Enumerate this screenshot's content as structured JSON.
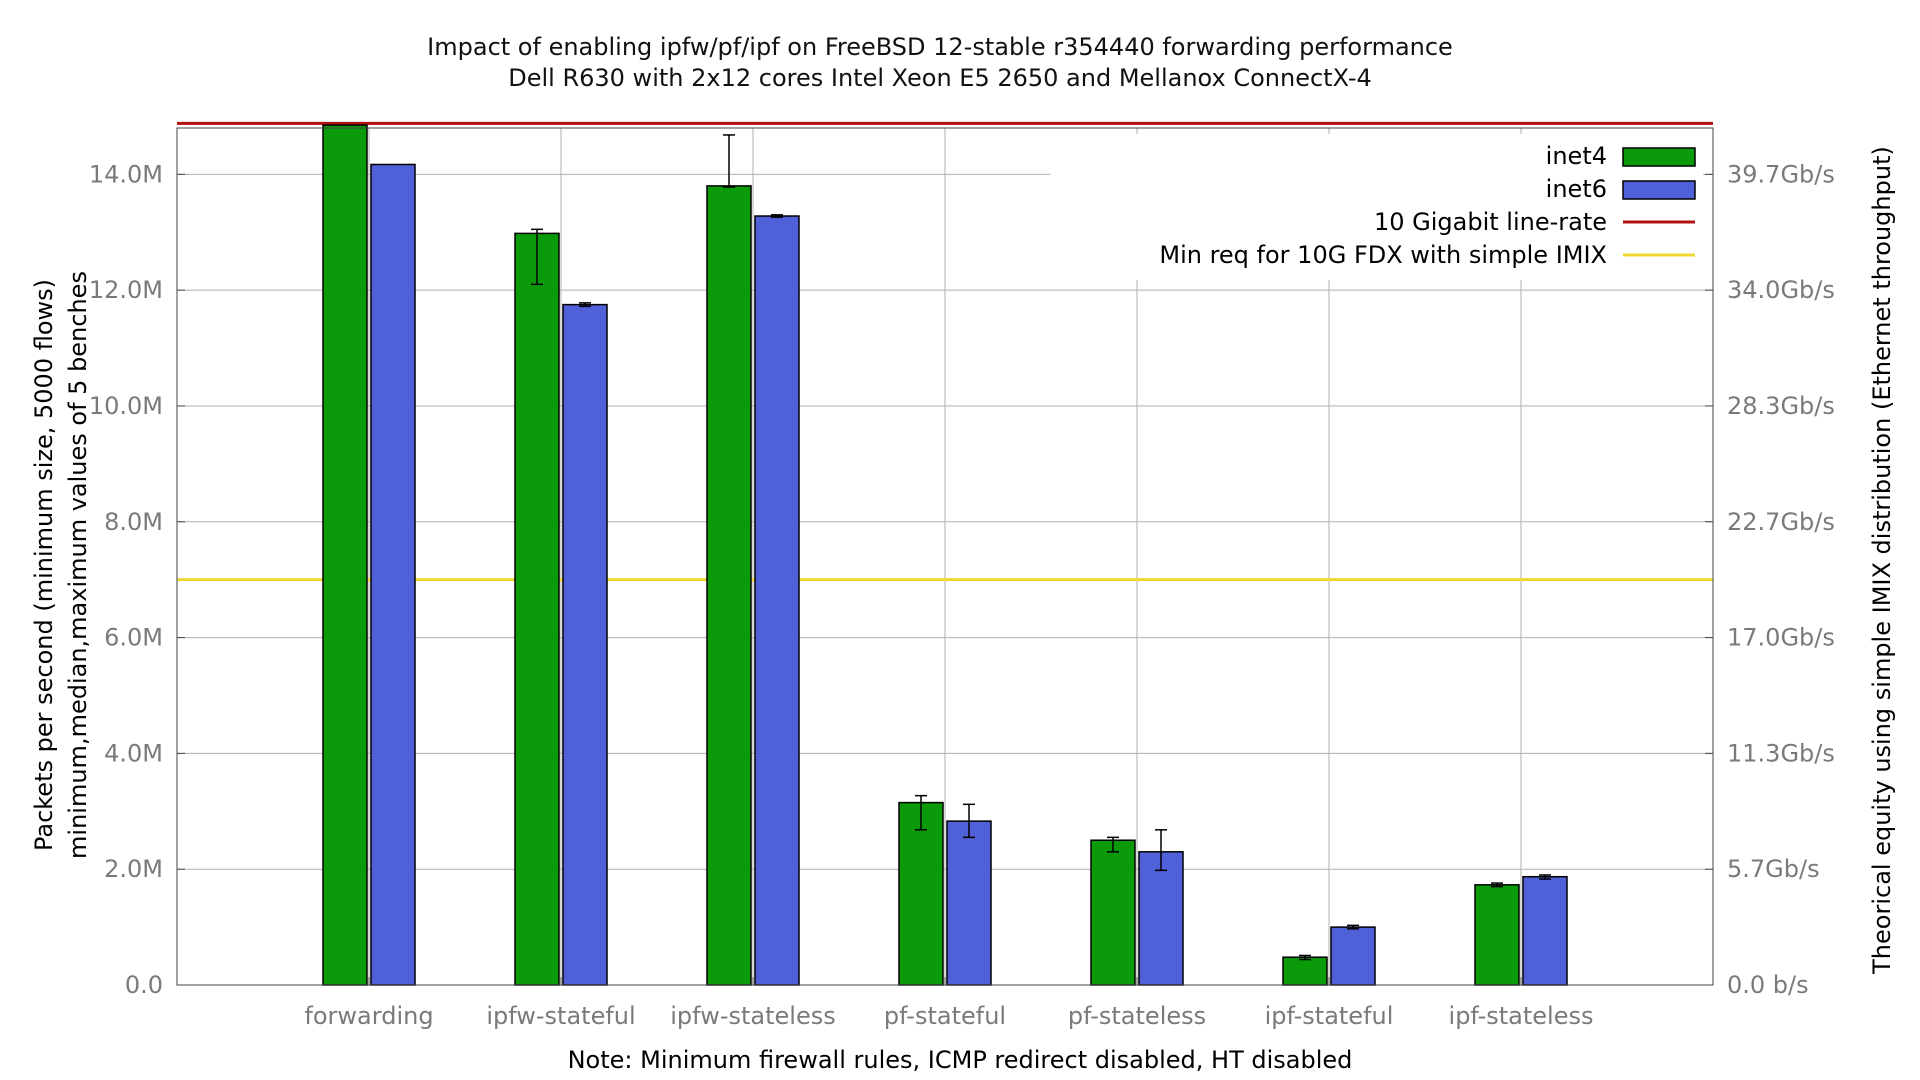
{
  "chart_data": {
    "type": "bar",
    "title": "Impact of enabling ipfw/pf/ipf on FreeBSD 12-stable r354440 forwarding performance",
    "subtitle": "Dell R630 with 2x12 cores Intel Xeon E5 2650 and Mellanox ConnectX-4",
    "ylabel": "Packets per second (minimum size, 5000 flows)",
    "ylabel2": "minimum,median,maximum values of 5 benches",
    "y2label": "Theorical equity using simple IMIX distribution (Ethernet throughput)",
    "note": "Note: Minimum firewall rules, ICMP redirect disabled, HT disabled",
    "categories": [
      "forwarding",
      "ipfw-stateful",
      "ipfw-stateless",
      "pf-stateful",
      "pf-stateless",
      "ipf-stateful",
      "ipf-stateless"
    ],
    "ylim": [
      0,
      14.8
    ],
    "yticks": [
      {
        "value": 0,
        "label": "0.0"
      },
      {
        "value": 2,
        "label": "2.0M"
      },
      {
        "value": 4,
        "label": "4.0M"
      },
      {
        "value": 6,
        "label": "6.0M"
      },
      {
        "value": 8,
        "label": "8.0M"
      },
      {
        "value": 10,
        "label": "10.0M"
      },
      {
        "value": 12,
        "label": "12.0M"
      },
      {
        "value": 14,
        "label": "14.0M"
      }
    ],
    "y2ticks": [
      {
        "value": 0,
        "label": "0.0 b/s"
      },
      {
        "value": 2,
        "label": "5.7Gb/s"
      },
      {
        "value": 4,
        "label": "11.3Gb/s"
      },
      {
        "value": 6,
        "label": "17.0Gb/s"
      },
      {
        "value": 8,
        "label": "22.7Gb/s"
      },
      {
        "value": 10,
        "label": "28.3Gb/s"
      },
      {
        "value": 12,
        "label": "34.0Gb/s"
      },
      {
        "value": 14,
        "label": "39.7Gb/s"
      }
    ],
    "grid": true,
    "legend_position": "top-right",
    "series": [
      {
        "name": "inet4",
        "color": "#0a9a0a",
        "values": [
          14.85,
          12.98,
          13.8,
          3.15,
          2.5,
          0.48,
          1.73
        ],
        "min": [
          14.85,
          12.1,
          13.78,
          2.68,
          2.3,
          0.44,
          1.7
        ],
        "max": [
          14.85,
          13.05,
          14.68,
          3.27,
          2.55,
          0.51,
          1.76
        ]
      },
      {
        "name": "inet6",
        "color": "#5060d8",
        "values": [
          14.17,
          11.75,
          13.28,
          2.83,
          2.3,
          1.0,
          1.87
        ],
        "min": [
          14.17,
          11.72,
          13.26,
          2.55,
          1.98,
          0.97,
          1.83
        ],
        "max": [
          14.17,
          11.78,
          13.3,
          3.12,
          2.68,
          1.03,
          1.9
        ]
      }
    ],
    "reference_lines": [
      {
        "name": "10 Gigabit line-rate",
        "value": 14.88,
        "color": "#b01010"
      },
      {
        "name": "Min req for 10G FDX with simple IMIX",
        "value": 7.0,
        "color": "#f0d830"
      }
    ]
  }
}
